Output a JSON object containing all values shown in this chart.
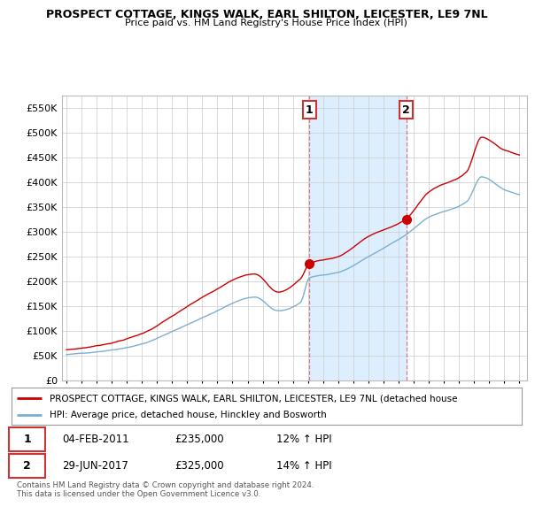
{
  "title": "PROSPECT COTTAGE, KINGS WALK, EARL SHILTON, LEICESTER, LE9 7NL",
  "subtitle": "Price paid vs. HM Land Registry's House Price Index (HPI)",
  "ytick_values": [
    0,
    50000,
    100000,
    150000,
    200000,
    250000,
    300000,
    350000,
    400000,
    450000,
    500000,
    550000
  ],
  "ylim": [
    0,
    575000
  ],
  "sale1_year": 2011.09,
  "sale1_price": 235000,
  "sale2_year": 2017.5,
  "sale2_price": 325000,
  "red_color": "#cc0000",
  "blue_color": "#7bafd4",
  "shaded_color": "#ddeeff",
  "grid_color": "#cccccc",
  "legend_label_red": "PROSPECT COTTAGE, KINGS WALK, EARL SHILTON, LEICESTER, LE9 7NL (detached house",
  "legend_label_blue": "HPI: Average price, detached house, Hinckley and Bosworth",
  "footnote": "Contains HM Land Registry data © Crown copyright and database right 2024.\nThis data is licensed under the Open Government Licence v3.0.",
  "table_rows": [
    {
      "num": "1",
      "date": "04-FEB-2011",
      "price": "£235,000",
      "hpi": "12% ↑ HPI"
    },
    {
      "num": "2",
      "date": "29-JUN-2017",
      "price": "£325,000",
      "hpi": "14% ↑ HPI"
    }
  ]
}
